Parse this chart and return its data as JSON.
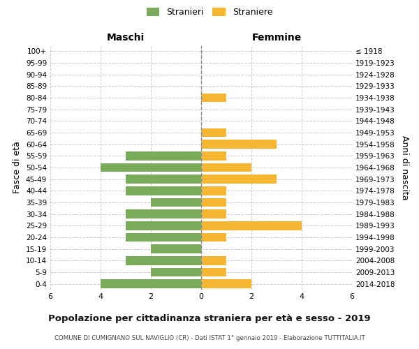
{
  "age_groups": [
    "0-4",
    "5-9",
    "10-14",
    "15-19",
    "20-24",
    "25-29",
    "30-34",
    "35-39",
    "40-44",
    "45-49",
    "50-54",
    "55-59",
    "60-64",
    "65-69",
    "70-74",
    "75-79",
    "80-84",
    "85-89",
    "90-94",
    "95-99",
    "100+"
  ],
  "birth_years": [
    "2014-2018",
    "2009-2013",
    "2004-2008",
    "1999-2003",
    "1994-1998",
    "1989-1993",
    "1984-1988",
    "1979-1983",
    "1974-1978",
    "1969-1973",
    "1964-1968",
    "1959-1963",
    "1954-1958",
    "1949-1953",
    "1944-1948",
    "1939-1943",
    "1934-1938",
    "1929-1933",
    "1924-1928",
    "1919-1923",
    "≤ 1918"
  ],
  "maschi": [
    4,
    2,
    3,
    2,
    3,
    3,
    3,
    2,
    3,
    3,
    4,
    3,
    0,
    0,
    0,
    0,
    0,
    0,
    0,
    0,
    0
  ],
  "femmine": [
    2,
    1,
    1,
    0,
    1,
    4,
    1,
    1,
    1,
    3,
    2,
    1,
    3,
    1,
    0,
    0,
    1,
    0,
    0,
    0,
    0
  ],
  "color_maschi": "#7aab5a",
  "color_femmine": "#f5b731",
  "title": "Popolazione per cittadinanza straniera per età e sesso - 2019",
  "subtitle": "COMUNE DI CUMIGNANO SUL NAVIGLIO (CR) - Dati ISTAT 1° gennaio 2019 - Elaborazione TUTTITALIA.IT",
  "label_maschi": "Maschi",
  "label_femmine": "Femmine",
  "ylabel_left": "Fasce di età",
  "ylabel_right": "Anni di nascita",
  "legend_maschi": "Stranieri",
  "legend_femmine": "Straniere",
  "xlim": 6,
  "background_color": "#ffffff",
  "grid_color": "#cccccc",
  "grid_linestyle": "--"
}
